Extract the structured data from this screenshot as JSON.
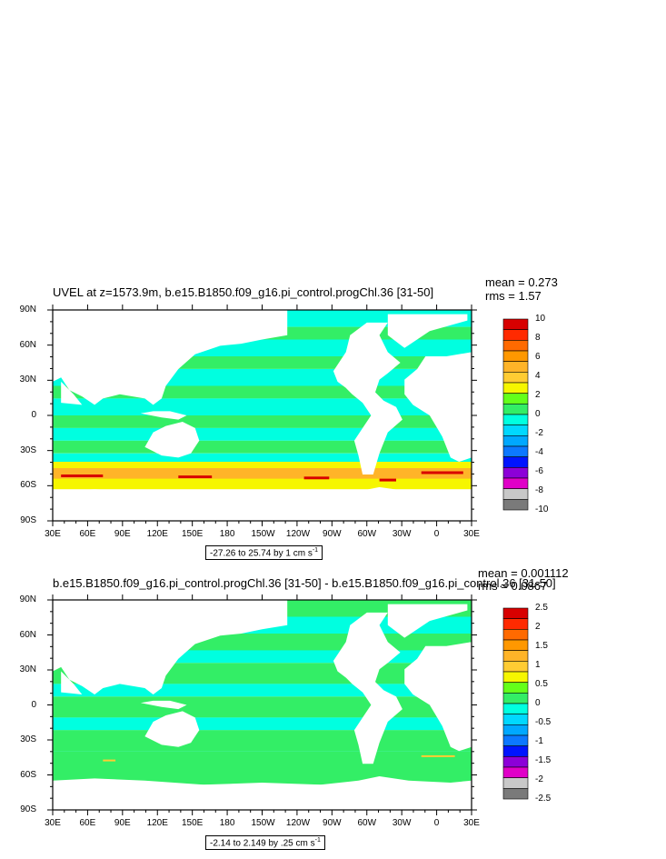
{
  "colors": {
    "land": "#ffffff",
    "ocean_base": "#33ffe3",
    "scale": [
      "#7a7a7a",
      "#c8c8c8",
      "#e000c8",
      "#8c00d8",
      "#0014ff",
      "#0c78ff",
      "#00a8ff",
      "#00d8ff",
      "#00ffe0",
      "#33ee66",
      "#64ff1a",
      "#f6f600",
      "#ffcc33",
      "#ffb428",
      "#ff9800",
      "#ff6a00",
      "#ff2a00",
      "#d80000"
    ]
  },
  "chart_data": [
    {
      "type": "heatmap",
      "title": "UVEL at z=1573.9m, b.e15.B1850.f09_g16.pi_control.progChl.36 [31-50]",
      "stats": {
        "mean": "mean = 0.273",
        "rms": "rms = 1.57"
      },
      "x_ticks": [
        "30E",
        "60E",
        "90E",
        "120E",
        "150E",
        "180",
        "150W",
        "120W",
        "90W",
        "60W",
        "30W",
        "0",
        "30E"
      ],
      "y_ticks": [
        "90N",
        "60N",
        "30N",
        "0",
        "30S",
        "60S",
        "90S"
      ],
      "contour_info_text": "-27.26 to 25.74 by 1 cm s",
      "contour_info_unit_sup": "-1",
      "colorbar_labels": [
        "10",
        "8",
        "6",
        "4",
        "2",
        "0",
        "-2",
        "-4",
        "-6",
        "-8",
        "-10"
      ]
    },
    {
      "type": "heatmap",
      "title": "b.e15.B1850.f09_g16.pi_control.progChl.36 [31-50] - b.e15.B1850.f09_g16.pi_control.36 [31-50]",
      "stats": {
        "mean": "mean = 0.001112",
        "rms": "rms = 0.0867"
      },
      "x_ticks": [
        "30E",
        "60E",
        "90E",
        "120E",
        "150E",
        "180",
        "150W",
        "120W",
        "90W",
        "60W",
        "30W",
        "0",
        "30E"
      ],
      "y_ticks": [
        "90N",
        "60N",
        "30N",
        "0",
        "30S",
        "60S",
        "90S"
      ],
      "contour_info_text": "-2.14 to 2.149 by .25 cm s",
      "contour_info_unit_sup": "-1",
      "colorbar_labels": [
        "2.5",
        "2",
        "1.5",
        "1",
        "0.5",
        "0",
        "-0.5",
        "-1",
        "-1.5",
        "-2",
        "-2.5"
      ]
    }
  ]
}
